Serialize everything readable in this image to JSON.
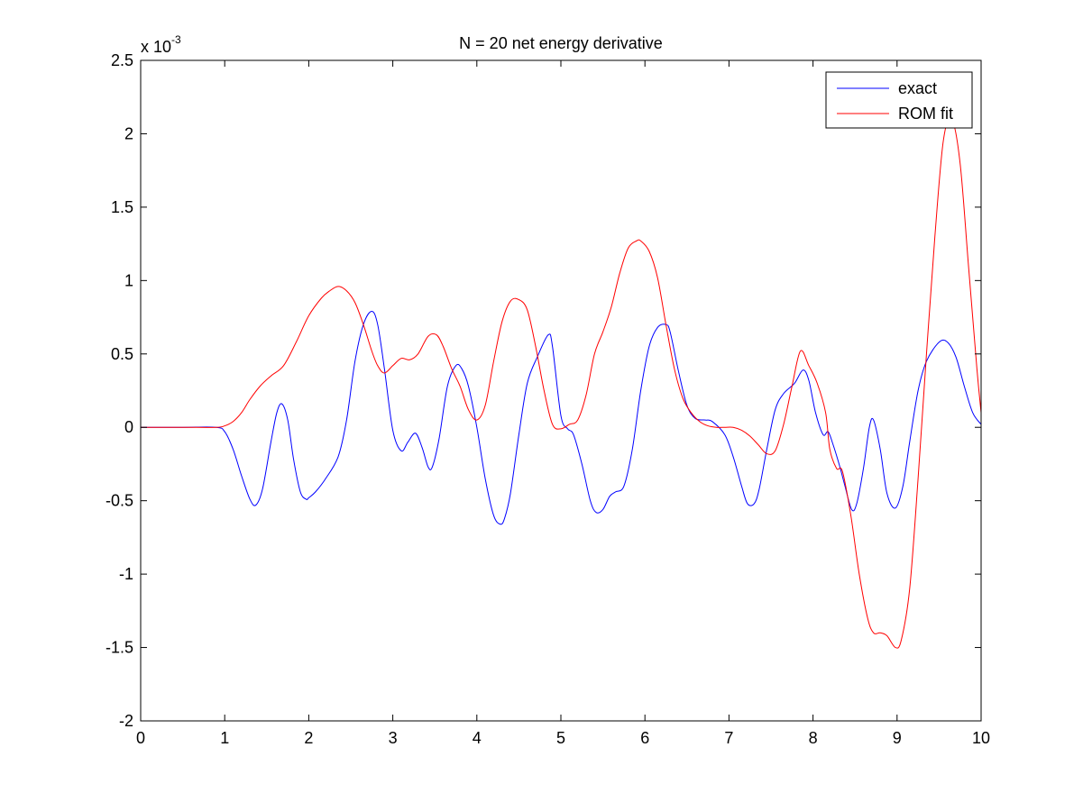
{
  "chart_data": {
    "type": "line",
    "title": "N = 20 net energy derivative",
    "xlabel": "",
    "ylabel": "",
    "xlim": [
      0,
      10
    ],
    "ylim": [
      -2,
      2.5
    ],
    "y_scale_multiplier": "x 10",
    "y_scale_exponent": "-3",
    "x_ticks": [
      0,
      1,
      2,
      3,
      4,
      5,
      6,
      7,
      8,
      9,
      10
    ],
    "y_ticks": [
      -2,
      -1.5,
      -1,
      -0.5,
      0,
      0.5,
      1,
      1.5,
      2,
      2.5
    ],
    "x_tick_labels": [
      "0",
      "1",
      "2",
      "3",
      "4",
      "5",
      "6",
      "7",
      "8",
      "9",
      "10"
    ],
    "y_tick_labels": [
      "-2",
      "-1.5",
      "-1",
      "-0.5",
      "0",
      "0.5",
      "1",
      "1.5",
      "2",
      "2.5"
    ],
    "grid": false,
    "legend_position": "top-right",
    "series": [
      {
        "name": "exact",
        "color": "#0000ff",
        "x": [
          0,
          0.5,
          0.9,
          1.0,
          1.1,
          1.2,
          1.3,
          1.37,
          1.45,
          1.55,
          1.62,
          1.68,
          1.75,
          1.82,
          1.9,
          1.97,
          2.0,
          2.08,
          2.2,
          2.35,
          2.45,
          2.55,
          2.65,
          2.75,
          2.82,
          2.9,
          3.0,
          3.1,
          3.18,
          3.27,
          3.35,
          3.42,
          3.47,
          3.55,
          3.65,
          3.75,
          3.82,
          3.9,
          4.0,
          4.1,
          4.2,
          4.28,
          4.33,
          4.4,
          4.5,
          4.6,
          4.72,
          4.85,
          4.9,
          5.0,
          5.08,
          5.15,
          5.25,
          5.35,
          5.42,
          5.5,
          5.58,
          5.65,
          5.75,
          5.85,
          5.95,
          6.05,
          6.15,
          6.25,
          6.3,
          6.4,
          6.5,
          6.6,
          6.72,
          6.8,
          6.95,
          7.05,
          7.15,
          7.22,
          7.3,
          7.36,
          7.45,
          7.55,
          7.65,
          7.78,
          7.88,
          7.95,
          8.03,
          8.12,
          8.18,
          8.24,
          8.32,
          8.38,
          8.46,
          8.52,
          8.6,
          8.67,
          8.72,
          8.8,
          8.88,
          8.98,
          9.07,
          9.15,
          9.25,
          9.35,
          9.5,
          9.6,
          9.7,
          9.8,
          9.9,
          10.0
        ],
        "values": [
          0,
          0,
          0,
          -0.03,
          -0.15,
          -0.33,
          -0.49,
          -0.53,
          -0.42,
          -0.1,
          0.1,
          0.16,
          0.05,
          -0.22,
          -0.44,
          -0.49,
          -0.48,
          -0.44,
          -0.35,
          -0.2,
          0.05,
          0.45,
          0.7,
          0.79,
          0.7,
          0.4,
          -0.02,
          -0.16,
          -0.1,
          -0.04,
          -0.14,
          -0.27,
          -0.27,
          -0.08,
          0.28,
          0.42,
          0.4,
          0.28,
          0.0,
          -0.35,
          -0.6,
          -0.66,
          -0.62,
          -0.45,
          -0.05,
          0.3,
          0.48,
          0.63,
          0.55,
          0.08,
          -0.01,
          -0.05,
          -0.25,
          -0.5,
          -0.58,
          -0.56,
          -0.47,
          -0.44,
          -0.4,
          -0.15,
          0.25,
          0.55,
          0.68,
          0.7,
          0.65,
          0.38,
          0.15,
          0.06,
          0.05,
          0.04,
          -0.05,
          -0.2,
          -0.4,
          -0.52,
          -0.52,
          -0.42,
          -0.15,
          0.12,
          0.23,
          0.3,
          0.39,
          0.32,
          0.1,
          -0.05,
          -0.03,
          -0.12,
          -0.27,
          -0.4,
          -0.56,
          -0.52,
          -0.28,
          0.0,
          0.05,
          -0.15,
          -0.45,
          -0.55,
          -0.4,
          -0.1,
          0.25,
          0.45,
          0.58,
          0.58,
          0.48,
          0.28,
          0.1,
          0.02
        ]
      },
      {
        "name": "ROM fit",
        "color": "#ff0000",
        "x": [
          0,
          0.5,
          0.9,
          1.0,
          1.1,
          1.2,
          1.3,
          1.42,
          1.55,
          1.7,
          1.85,
          2.0,
          2.15,
          2.25,
          2.35,
          2.45,
          2.55,
          2.65,
          2.75,
          2.82,
          2.9,
          3.0,
          3.1,
          3.2,
          3.3,
          3.42,
          3.52,
          3.6,
          3.7,
          3.8,
          3.9,
          4.0,
          4.1,
          4.2,
          4.3,
          4.4,
          4.5,
          4.6,
          4.7,
          4.8,
          4.9,
          5.0,
          5.1,
          5.2,
          5.3,
          5.4,
          5.5,
          5.6,
          5.7,
          5.8,
          5.9,
          5.95,
          6.05,
          6.15,
          6.25,
          6.35,
          6.45,
          6.55,
          6.65,
          6.75,
          6.85,
          6.95,
          7.05,
          7.15,
          7.25,
          7.35,
          7.45,
          7.55,
          7.65,
          7.75,
          7.85,
          7.95,
          8.05,
          8.15,
          8.2,
          8.28,
          8.35,
          8.45,
          8.55,
          8.65,
          8.72,
          8.8,
          8.88,
          8.98,
          9.05,
          9.15,
          9.25,
          9.35,
          9.45,
          9.55,
          9.65,
          9.75,
          9.85,
          9.95,
          10.0
        ],
        "values": [
          0,
          0,
          0,
          0.01,
          0.04,
          0.1,
          0.19,
          0.28,
          0.35,
          0.42,
          0.58,
          0.76,
          0.88,
          0.93,
          0.96,
          0.93,
          0.85,
          0.7,
          0.52,
          0.42,
          0.37,
          0.42,
          0.47,
          0.46,
          0.5,
          0.62,
          0.63,
          0.55,
          0.4,
          0.28,
          0.12,
          0.05,
          0.15,
          0.45,
          0.72,
          0.86,
          0.87,
          0.8,
          0.55,
          0.25,
          0.02,
          -0.01,
          0.02,
          0.05,
          0.22,
          0.5,
          0.65,
          0.82,
          1.05,
          1.22,
          1.27,
          1.27,
          1.2,
          1.02,
          0.7,
          0.4,
          0.2,
          0.1,
          0.04,
          0.01,
          0.0,
          0.0,
          0.0,
          -0.02,
          -0.06,
          -0.12,
          -0.18,
          -0.16,
          0.02,
          0.28,
          0.52,
          0.42,
          0.3,
          0.1,
          -0.15,
          -0.28,
          -0.3,
          -0.6,
          -1.0,
          -1.3,
          -1.4,
          -1.4,
          -1.42,
          -1.5,
          -1.45,
          -1.1,
          -0.35,
          0.5,
          1.3,
          1.95,
          2.1,
          1.8,
          1.1,
          0.4,
          0.1
        ]
      }
    ]
  }
}
